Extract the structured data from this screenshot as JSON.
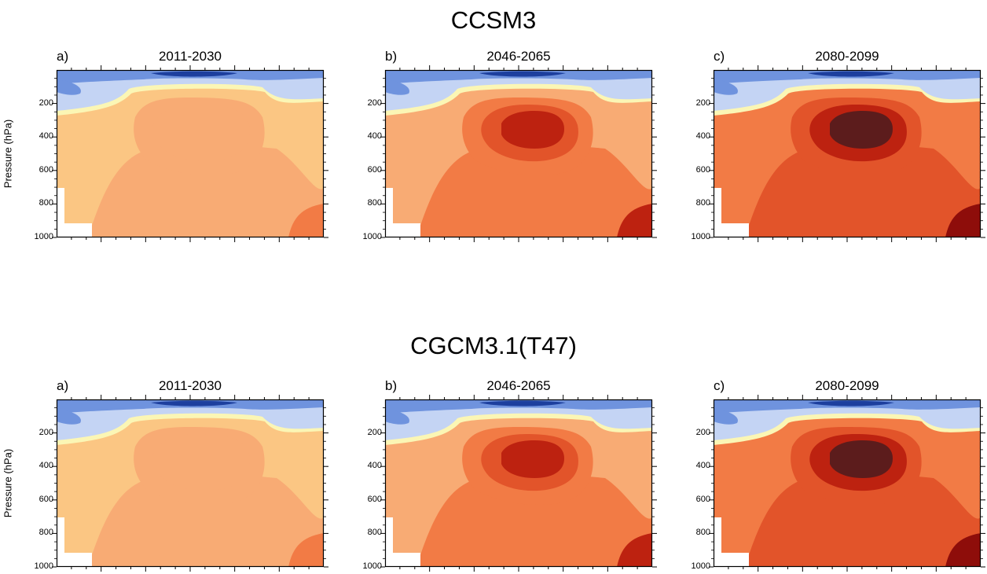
{
  "chart_data": [
    {
      "type": "heatmap",
      "model": "CCSM3",
      "ylabel": "Pressure (hPa)",
      "yticks": [
        "200",
        "400",
        "600",
        "800",
        "1000"
      ],
      "ylim": [
        1000,
        0
      ],
      "panels": [
        {
          "letter": "a)",
          "period": "2011-2030",
          "intensity": 1
        },
        {
          "letter": "b)",
          "period": "2046-2065",
          "intensity": 2
        },
        {
          "letter": "c)",
          "period": "2080-2099",
          "intensity": 3
        }
      ]
    },
    {
      "type": "heatmap",
      "model": "CGCM3.1(T47)",
      "ylabel": "Pressure (hPa)",
      "yticks": [
        "200",
        "400",
        "600",
        "800",
        "1000"
      ],
      "ylim": [
        1000,
        0
      ],
      "panels": [
        {
          "letter": "a)",
          "period": "2011-2030",
          "intensity": 1
        },
        {
          "letter": "b)",
          "period": "2046-2065",
          "intensity": 2
        },
        {
          "letter": "c)",
          "period": "2080-2099",
          "intensity": 3
        }
      ]
    }
  ],
  "colors": {
    "stratosphere_dark": "#1d3f9e",
    "stratosphere_mid": "#6f93de",
    "stratosphere_light": "#c4d4f4",
    "tropopause": "#fbf6b5",
    "level1": "#fbc683",
    "level2": "#f8ab74",
    "level3": "#f27b45",
    "level4": "#e2542a",
    "level5": "#bd2210",
    "level6": "#8e0d0a",
    "level7": "#5c1c1c"
  }
}
